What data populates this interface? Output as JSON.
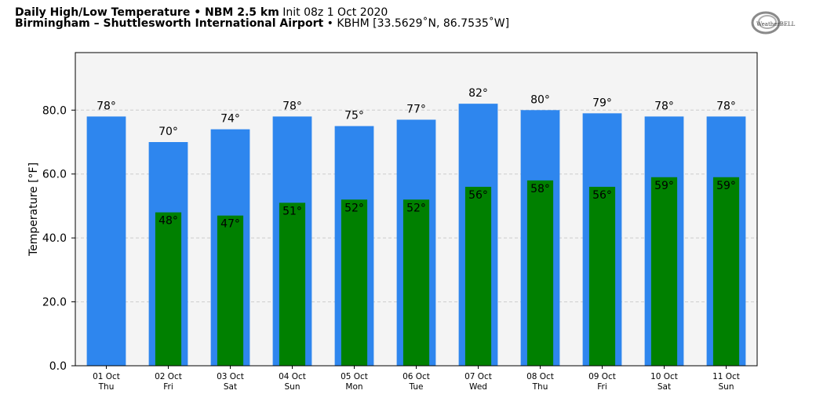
{
  "header": {
    "line1_bold": "Daily High/Low Temperature • NBM 2.5 km",
    "line1_normal": "Init 08z 1 Oct 2020",
    "line2_bold": "Birmingham – Shuttlesworth International Airport",
    "line2_normal": "• KBHM [33.5629˚N, 86.7535˚W]"
  },
  "logo": {
    "text": "WeatherBELL",
    "icon": "weatherbell-swirl-logo"
  },
  "colors": {
    "high": "#2e86ee",
    "low": "#008000",
    "plot_bg": "#f4f4f4",
    "grid": "#cccccc"
  },
  "chart_data": {
    "type": "bar",
    "title": "Daily High/Low Temperature • NBM 2.5 km",
    "xlabel": "",
    "ylabel": "Temperature [°F]",
    "ylim": [
      0,
      98
    ],
    "yticks": [
      0,
      20,
      40,
      60,
      80
    ],
    "ytick_labels": [
      "0.0",
      "20.0",
      "40.0",
      "60.0",
      "80.0"
    ],
    "grid": true,
    "categories": [
      "01 Oct",
      "02 Oct",
      "03 Oct",
      "04 Oct",
      "05 Oct",
      "06 Oct",
      "07 Oct",
      "08 Oct",
      "09 Oct",
      "10 Oct",
      "11 Oct"
    ],
    "days": [
      "Thu",
      "Fri",
      "Sat",
      "Sun",
      "Mon",
      "Tue",
      "Wed",
      "Thu",
      "Fri",
      "Sat",
      "Sun"
    ],
    "series": [
      {
        "key": "high",
        "values": [
          78,
          70,
          74,
          78,
          75,
          77,
          82,
          80,
          79,
          78,
          78
        ],
        "labels": [
          "78°",
          "70°",
          "74°",
          "78°",
          "75°",
          "77°",
          "82°",
          "80°",
          "79°",
          "78°",
          "78°"
        ]
      },
      {
        "key": "low",
        "values": [
          null,
          48,
          47,
          51,
          52,
          52,
          56,
          58,
          56,
          59,
          59
        ],
        "labels": [
          "",
          "48°",
          "47°",
          "51°",
          "52°",
          "52°",
          "56°",
          "58°",
          "56°",
          "59°",
          "59°"
        ]
      }
    ]
  }
}
